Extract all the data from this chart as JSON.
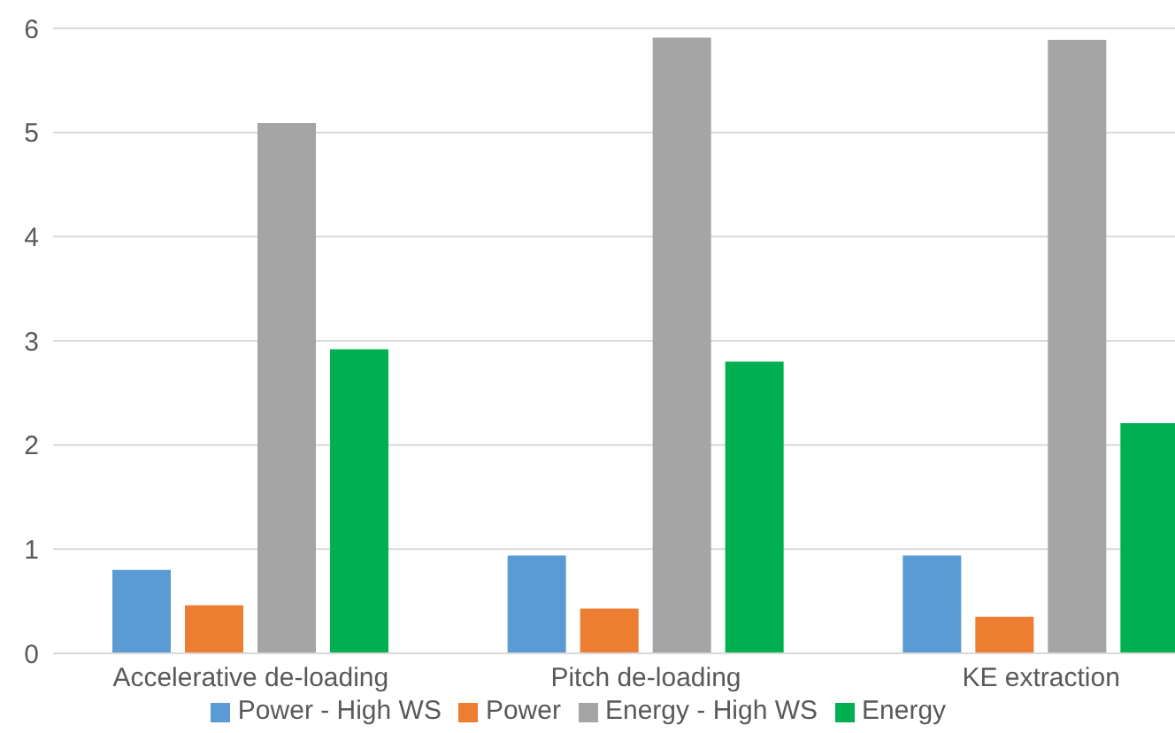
{
  "chart_data": {
    "type": "bar",
    "categories": [
      "Accelerative de-loading",
      "Pitch de-loading",
      "KE extraction"
    ],
    "series": [
      {
        "name": "Power - High WS",
        "color": "#5b9bd5",
        "values": [
          0.8,
          0.94,
          0.94
        ]
      },
      {
        "name": "Power",
        "color": "#ed7d31",
        "values": [
          0.46,
          0.43,
          0.35
        ]
      },
      {
        "name": "Energy - High WS",
        "color": "#a5a5a5",
        "values": [
          5.09,
          5.91,
          5.89
        ]
      },
      {
        "name": "Energy",
        "color": "#00b050",
        "values": [
          2.92,
          2.8,
          2.21
        ]
      }
    ],
    "ylim": [
      0,
      6
    ],
    "yticks": [
      0,
      1,
      2,
      3,
      4,
      5,
      6
    ],
    "grid": "y",
    "legend": "bottom"
  }
}
